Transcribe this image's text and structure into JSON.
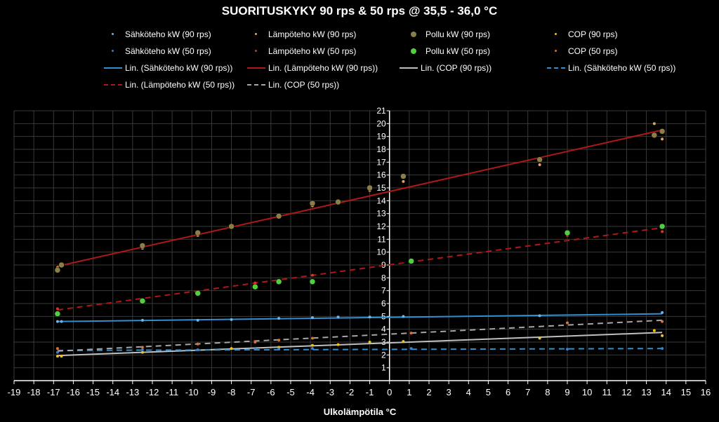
{
  "chart_data": {
    "type": "scatter",
    "title": "SUORITUSKYKY 90 rps & 50 rps @ 35,5 - 36,0 °C",
    "xlabel": "Ulkolämpötila °C",
    "ylabel": "",
    "xlim": [
      -19,
      16
    ],
    "ylim": [
      0,
      21
    ],
    "grid": true,
    "x_ticks": [
      -19,
      -18,
      -17,
      -16,
      -15,
      -14,
      -13,
      -12,
      -11,
      -10,
      -9,
      -8,
      -7,
      -6,
      -5,
      -4,
      -3,
      -2,
      -1,
      0,
      1,
      2,
      3,
      4,
      5,
      6,
      7,
      8,
      9,
      10,
      11,
      12,
      13,
      14,
      15,
      16
    ],
    "y_ticks": [
      1,
      2,
      3,
      4,
      5,
      6,
      7,
      8,
      9,
      10,
      11,
      12,
      13,
      14,
      15,
      16,
      17,
      18,
      19,
      20,
      21
    ],
    "series": [
      {
        "name": "Sähköteho kW (90 rps)",
        "kind": "scatter",
        "color": "#6fb3e8",
        "size": 2,
        "x": [
          -16.8,
          -16.6,
          -12.5,
          -9.7,
          -8,
          -5.6,
          -3.9,
          -2.6,
          -1,
          0.7,
          7.6,
          13.8
        ],
        "y": [
          4.6,
          4.6,
          4.7,
          4.7,
          4.75,
          4.85,
          4.9,
          4.95,
          4.95,
          5.0,
          5.05,
          5.3
        ]
      },
      {
        "name": "Lämpöteho kW (90 rps)",
        "kind": "scatter",
        "color": "#e8a060",
        "size": 2,
        "x": [
          -16.8,
          -16.6,
          -12.5,
          -9.7,
          -8,
          -5.6,
          -3.9,
          -2.6,
          -1,
          0.7,
          7.6,
          13.4,
          13.8
        ],
        "y": [
          8.8,
          9.0,
          10.3,
          11.3,
          12.0,
          12.9,
          13.6,
          13.8,
          14.8,
          15.5,
          16.8,
          20.0,
          18.8
        ]
      },
      {
        "name": "Pollu kW (90 rps)",
        "kind": "scatter",
        "color": "#8b7f47",
        "size": 4,
        "x": [
          -16.8,
          -16.6,
          -12.5,
          -9.7,
          -8,
          -5.6,
          -3.9,
          -2.6,
          -1,
          0.7,
          7.6,
          13.4,
          13.8
        ],
        "y": [
          8.6,
          9.0,
          10.5,
          11.5,
          12.0,
          12.8,
          13.8,
          13.9,
          15.0,
          15.9,
          17.2,
          19.1,
          19.4
        ]
      },
      {
        "name": "COP (90 rps)",
        "kind": "scatter",
        "color": "#f0c020",
        "size": 2,
        "x": [
          -16.8,
          -16.6,
          -12.5,
          -9.7,
          -8,
          -5.6,
          -3.9,
          -2.6,
          -1,
          0.7,
          7.6,
          13.4,
          13.8
        ],
        "y": [
          1.9,
          1.9,
          2.2,
          2.4,
          2.5,
          2.6,
          2.75,
          2.8,
          3.0,
          3.05,
          3.3,
          3.9,
          3.5
        ]
      },
      {
        "name": "Sähköteho kW (50 rps)",
        "kind": "scatter",
        "color": "#3a7fd0",
        "size": 2,
        "x": [
          -16.8,
          -12.5,
          -9.7,
          -6.8,
          -5.6,
          -3.9,
          1.1,
          9.0,
          13.8
        ],
        "y": [
          2.2,
          2.4,
          2.4,
          2.45,
          2.45,
          2.5,
          2.5,
          2.45,
          2.5
        ]
      },
      {
        "name": "Lämpöteho kW (50 rps)",
        "kind": "scatter",
        "color": "#e03020",
        "size": 2,
        "x": [
          -16.8,
          -12.5,
          -9.7,
          -6.8,
          -5.6,
          -3.9,
          1.1,
          9.0,
          13.8
        ],
        "y": [
          5.6,
          6.2,
          6.9,
          7.6,
          7.8,
          8.2,
          9.4,
          11.3,
          11.6
        ]
      },
      {
        "name": "Pollu kW (50 rps)",
        "kind": "scatter",
        "color": "#50d040",
        "size": 4,
        "x": [
          -16.8,
          -12.5,
          -9.7,
          -6.8,
          -5.6,
          -3.9,
          1.1,
          9.0,
          13.8
        ],
        "y": [
          5.2,
          6.2,
          6.8,
          7.3,
          7.7,
          7.7,
          9.3,
          11.5,
          12.0
        ]
      },
      {
        "name": "COP (50 rps)",
        "kind": "scatter",
        "color": "#e07030",
        "size": 2,
        "x": [
          -16.8,
          -12.5,
          -9.7,
          -6.8,
          -5.6,
          -3.9,
          1.1,
          9.0,
          13.8
        ],
        "y": [
          2.5,
          2.6,
          2.85,
          3.0,
          3.15,
          3.3,
          3.7,
          4.5,
          4.6
        ]
      },
      {
        "name": "Lin. (Sähköteho kW (90 rps))",
        "kind": "line",
        "color": "#2f8fd0",
        "dash": false,
        "x": [
          -16.8,
          13.8
        ],
        "y": [
          4.6,
          5.2
        ]
      },
      {
        "name": "Lin. (Lämpöteho kW (90 rps))",
        "kind": "line",
        "color": "#b01818",
        "dash": false,
        "x": [
          -16.8,
          13.8
        ],
        "y": [
          8.9,
          19.5
        ]
      },
      {
        "name": "Lin. (COP (90 rps))",
        "kind": "line",
        "color": "#bfbfbf",
        "dash": false,
        "x": [
          -16.8,
          13.8
        ],
        "y": [
          1.95,
          3.75
        ]
      },
      {
        "name": "Lin. (Sähköteho kW (50 rps))",
        "kind": "line",
        "color": "#2f8fd0",
        "dash": true,
        "x": [
          -16.8,
          13.8
        ],
        "y": [
          2.35,
          2.5
        ]
      },
      {
        "name": "Lin. (Lämpöteho kW (50 rps))",
        "kind": "line",
        "color": "#b01818",
        "dash": true,
        "x": [
          -16.8,
          13.8
        ],
        "y": [
          5.5,
          11.9
        ]
      },
      {
        "name": "Lin. (COP (50 rps))",
        "kind": "line",
        "color": "#a6a6a6",
        "dash": true,
        "x": [
          -16.8,
          13.8
        ],
        "y": [
          2.3,
          4.7
        ]
      }
    ]
  }
}
